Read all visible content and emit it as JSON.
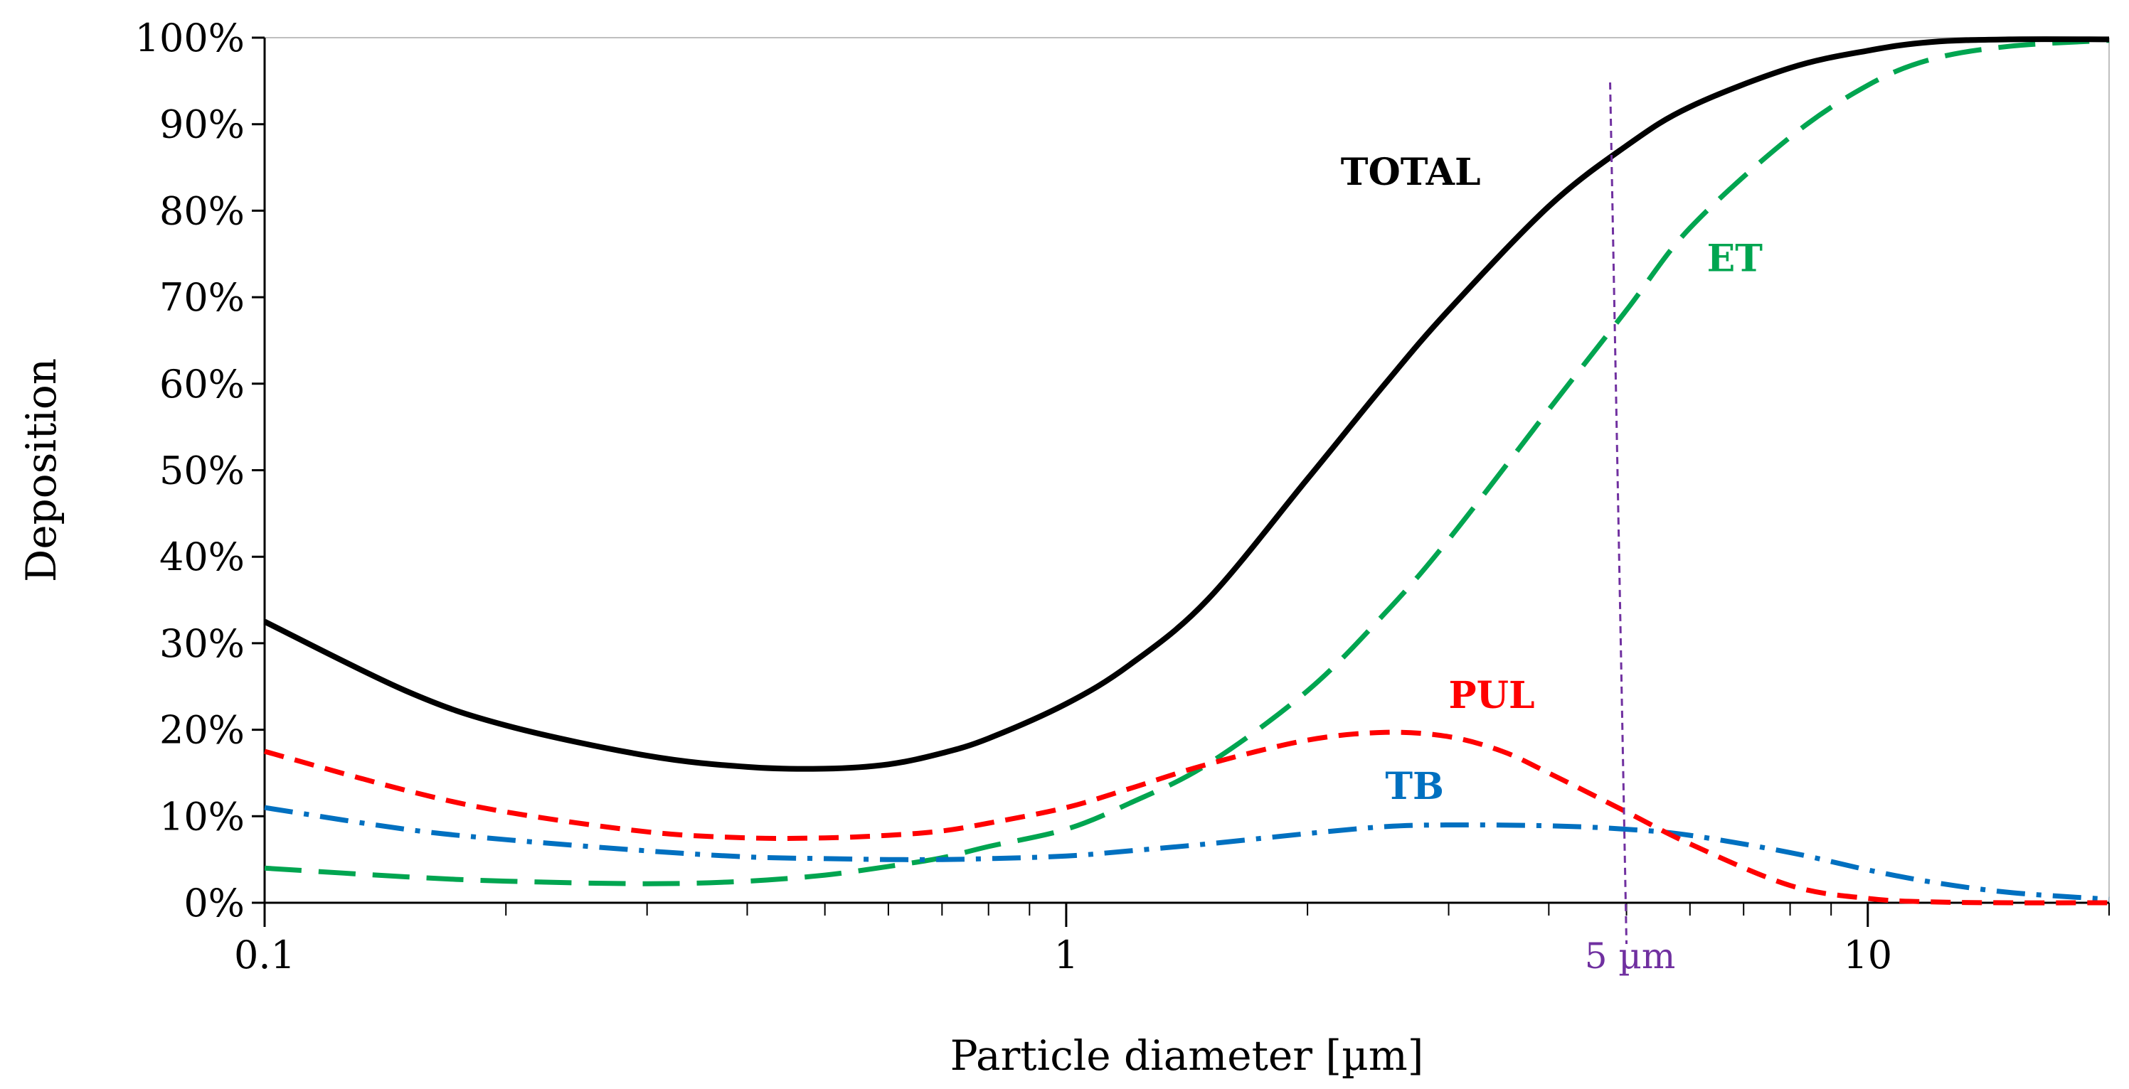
{
  "chart_data": {
    "type": "line",
    "title": "",
    "xlabel": "Particle diameter [µm]",
    "ylabel": "Deposition",
    "xscale": "log",
    "xlim": [
      0.1,
      20
    ],
    "ylim": [
      0,
      100
    ],
    "grid": false,
    "x_ticks": [
      {
        "value": 0.1,
        "label": "0.1"
      },
      {
        "value": 1,
        "label": "1"
      },
      {
        "value": 10,
        "label": "10"
      }
    ],
    "y_ticks": [
      {
        "value": 0,
        "label": "0%"
      },
      {
        "value": 10,
        "label": "10%"
      },
      {
        "value": 20,
        "label": "20%"
      },
      {
        "value": 30,
        "label": "30%"
      },
      {
        "value": 40,
        "label": "40%"
      },
      {
        "value": 50,
        "label": "50%"
      },
      {
        "value": 60,
        "label": "60%"
      },
      {
        "value": 70,
        "label": "70%"
      },
      {
        "value": 80,
        "label": "80%"
      },
      {
        "value": 90,
        "label": "90%"
      },
      {
        "value": 100,
        "label": "100%"
      }
    ],
    "x_minor_ticks": [
      0.2,
      0.3,
      0.4,
      0.5,
      0.6,
      0.7,
      0.8,
      0.9,
      2,
      3,
      4,
      5,
      6,
      7,
      8,
      9,
      20
    ],
    "series": [
      {
        "name": "TOTAL",
        "color": "#000000",
        "style": "solid",
        "label_at": {
          "x": 2.2,
          "y": 83
        },
        "x": [
          0.1,
          0.15,
          0.2,
          0.3,
          0.4,
          0.5,
          0.6,
          0.7,
          0.8,
          1.0,
          1.2,
          1.5,
          2.0,
          2.5,
          3.0,
          4.0,
          5.0,
          6.0,
          8.0,
          10.0,
          12.0,
          15.0,
          20.0
        ],
        "y": [
          32.5,
          24.5,
          20.5,
          17,
          15.7,
          15.5,
          16,
          17.3,
          19,
          23,
          27.5,
          35,
          49,
          60,
          68.5,
          80.5,
          87.5,
          92,
          96.5,
          98.5,
          99.5,
          99.8,
          99.8
        ]
      },
      {
        "name": "ET",
        "color": "#00A550",
        "style": "dashed",
        "label_at": {
          "x": 6.3,
          "y": 73
        },
        "x": [
          0.1,
          0.15,
          0.2,
          0.3,
          0.4,
          0.5,
          0.6,
          0.7,
          0.8,
          1.0,
          1.2,
          1.5,
          2.0,
          2.5,
          3.0,
          4.0,
          5.0,
          6.0,
          8.0,
          10.0,
          12.0,
          15.0,
          20.0
        ],
        "y": [
          4,
          3,
          2.5,
          2.2,
          2.5,
          3.2,
          4.2,
          5.2,
          6.5,
          8.5,
          11.5,
          16,
          24.5,
          33.5,
          42,
          57,
          68.5,
          78,
          88.5,
          94.5,
          97.5,
          99,
          99.7
        ]
      },
      {
        "name": "PUL",
        "color": "#FF0000",
        "style": "dashed",
        "label_at": {
          "x": 3.0,
          "y": 22.5
        },
        "x": [
          0.1,
          0.15,
          0.2,
          0.3,
          0.4,
          0.5,
          0.6,
          0.7,
          0.8,
          1.0,
          1.2,
          1.5,
          2.0,
          2.5,
          3.0,
          3.5,
          4.0,
          5.0,
          6.0,
          8.0,
          10.0,
          12.0,
          15.0,
          20.0
        ],
        "y": [
          17.5,
          13,
          10.5,
          8.2,
          7.5,
          7.5,
          7.8,
          8.3,
          9.2,
          11,
          13.2,
          16,
          18.8,
          19.7,
          19.2,
          17.5,
          15,
          10.5,
          6.8,
          2,
          0.5,
          0.1,
          0,
          0
        ]
      },
      {
        "name": "TB",
        "color": "#0070C0",
        "style": "dashdot",
        "label_at": {
          "x": 2.5,
          "y": 12
        },
        "x": [
          0.1,
          0.15,
          0.2,
          0.3,
          0.4,
          0.5,
          0.6,
          0.7,
          0.8,
          1.0,
          1.2,
          1.5,
          2.0,
          2.5,
          3.0,
          4.0,
          5.0,
          6.0,
          8.0,
          10.0,
          12.0,
          15.0,
          20.0
        ],
        "y": [
          11,
          8.5,
          7.3,
          6,
          5.3,
          5.1,
          5,
          5,
          5.1,
          5.4,
          6,
          6.8,
          8,
          8.8,
          9,
          8.9,
          8.5,
          7.8,
          5.8,
          3.8,
          2.4,
          1.2,
          0.4
        ]
      }
    ],
    "reference_line": {
      "x": 5,
      "label": "5 µm",
      "color": "#7030A0",
      "style": "dashed"
    }
  }
}
